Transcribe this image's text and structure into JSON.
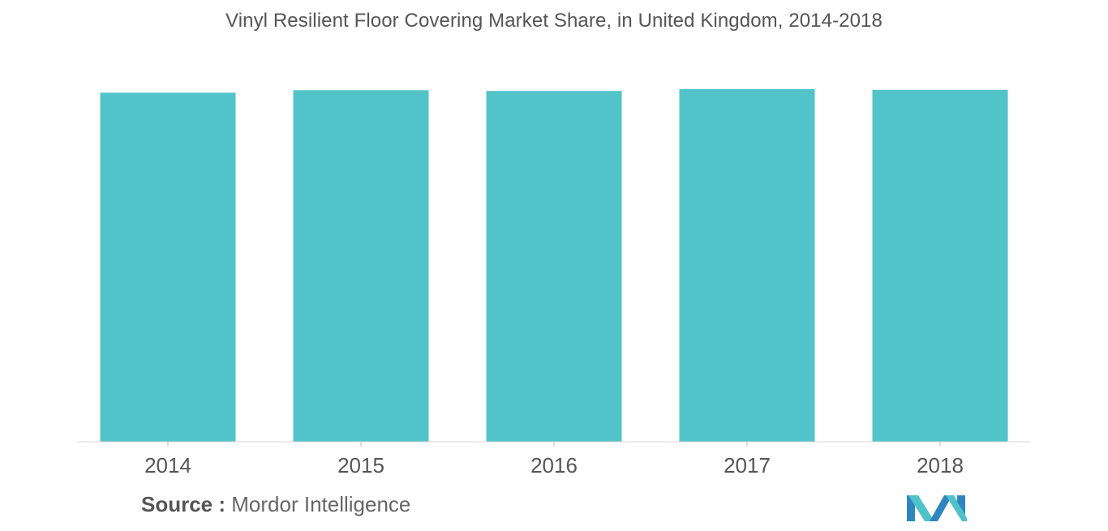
{
  "chart_data": {
    "type": "bar",
    "title": "Vinyl Resilient Floor Covering Market Share, in United Kingdom, 2014-2018",
    "categories": [
      "2014",
      "2015",
      "2016",
      "2017",
      "2018"
    ],
    "values": [
      99.0,
      99.7,
      99.5,
      100.0,
      99.8
    ],
    "ylim": [
      0,
      100
    ],
    "xlabel": "",
    "ylabel": "",
    "grid": false,
    "bar_color": "#53C3CA"
  },
  "source": {
    "label": "Source :",
    "text": "Mordor Intelligence"
  },
  "logo": {
    "name": "mordor-intelligence-logo",
    "colors": [
      "#2E86C1",
      "#4FC1C9"
    ]
  }
}
